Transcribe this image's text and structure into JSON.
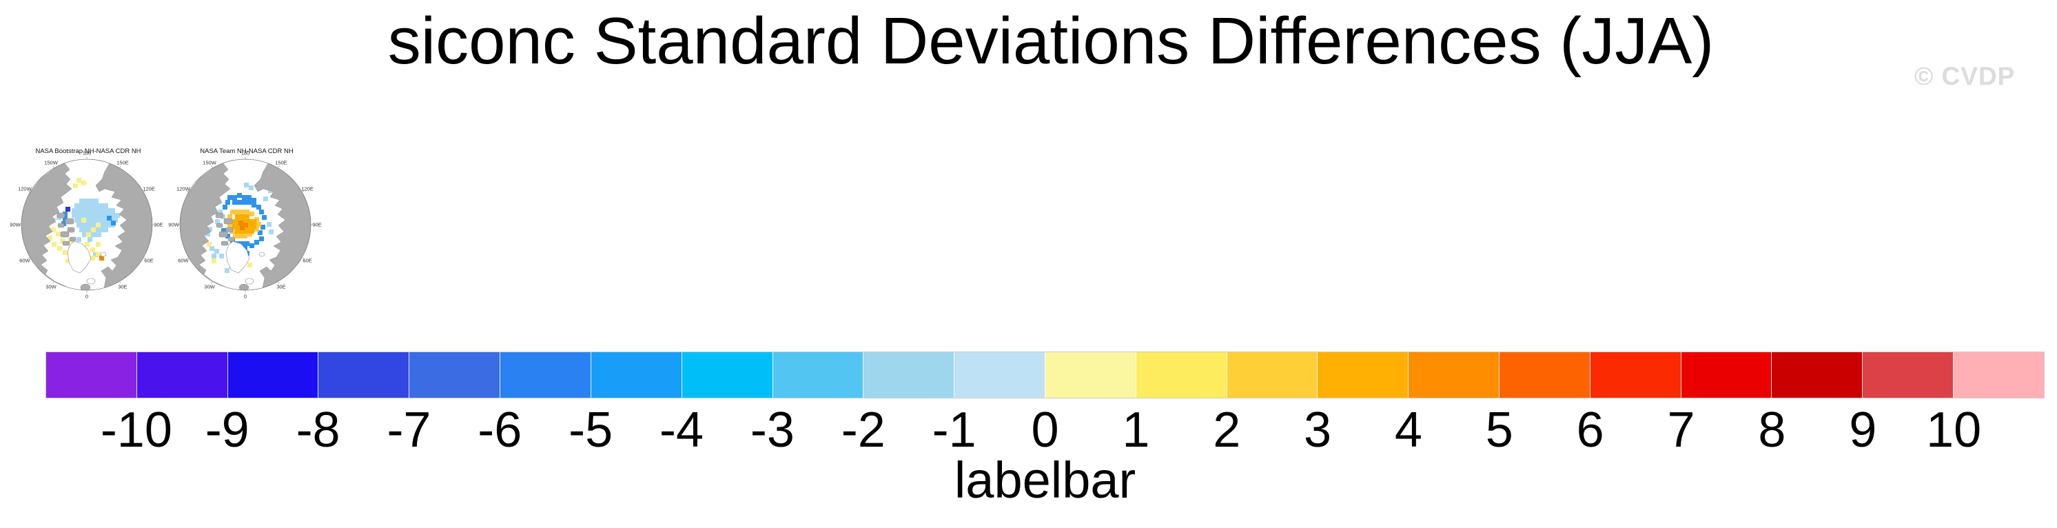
{
  "title": "siconc Standard Deviations Differences (JJA)",
  "watermark": "© CVDP",
  "maps": [
    {
      "title": "NASA Bootstrap NH-NASA CDR NH",
      "lon_labels": [
        "180",
        "150E",
        "120E",
        "90E",
        "60E",
        "30E",
        "0",
        "30W",
        "60W",
        "90W",
        "120W",
        "150W"
      ],
      "cells": [
        [
          104,
          85,
          "lb"
        ],
        [
          111,
          85,
          "lb"
        ],
        [
          118,
          85,
          "lb"
        ],
        [
          125,
          85,
          "lb"
        ],
        [
          97,
          92,
          "lb"
        ],
        [
          104,
          92,
          "lb"
        ],
        [
          111,
          92,
          "lb"
        ],
        [
          118,
          92,
          "lb"
        ],
        [
          125,
          92,
          "lb"
        ],
        [
          132,
          92,
          "lb"
        ],
        [
          139,
          92,
          "lb"
        ],
        [
          93,
          99,
          "lb"
        ],
        [
          100,
          99,
          "lb"
        ],
        [
          107,
          99,
          "lb"
        ],
        [
          114,
          99,
          "lb"
        ],
        [
          121,
          99,
          "lb"
        ],
        [
          128,
          99,
          "lb"
        ],
        [
          135,
          99,
          "lb"
        ],
        [
          142,
          99,
          "lb"
        ],
        [
          149,
          99,
          "lb"
        ],
        [
          93,
          106,
          "lb"
        ],
        [
          100,
          106,
          "lb"
        ],
        [
          107,
          106,
          "lb"
        ],
        [
          114,
          106,
          "lb"
        ],
        [
          121,
          106,
          "lb"
        ],
        [
          128,
          106,
          "lb"
        ],
        [
          135,
          106,
          "lb"
        ],
        [
          142,
          106,
          "lb"
        ],
        [
          149,
          106,
          "lb"
        ],
        [
          156,
          106,
          "lb"
        ],
        [
          97,
          113,
          "lb"
        ],
        [
          104,
          113,
          "lb"
        ],
        [
          111,
          113,
          "lb"
        ],
        [
          118,
          113,
          "lb"
        ],
        [
          125,
          113,
          "lb"
        ],
        [
          132,
          113,
          "lb"
        ],
        [
          139,
          113,
          "lb"
        ],
        [
          146,
          113,
          "lb"
        ],
        [
          153,
          113,
          "lb"
        ],
        [
          100,
          120,
          "lb"
        ],
        [
          107,
          120,
          "lb"
        ],
        [
          114,
          120,
          "lb"
        ],
        [
          121,
          120,
          "lb"
        ],
        [
          128,
          120,
          "lb"
        ],
        [
          135,
          120,
          "lb"
        ],
        [
          142,
          120,
          "lb"
        ],
        [
          149,
          120,
          "lb"
        ],
        [
          104,
          127,
          "lb"
        ],
        [
          111,
          127,
          "lb"
        ],
        [
          118,
          127,
          "lb"
        ],
        [
          125,
          127,
          "lb"
        ],
        [
          132,
          127,
          "lb"
        ],
        [
          139,
          127,
          "lb"
        ],
        [
          108,
          134,
          "lb"
        ],
        [
          115,
          134,
          "lb"
        ],
        [
          122,
          134,
          "lb"
        ],
        [
          129,
          134,
          "lb"
        ],
        [
          100,
          141,
          "lb"
        ],
        [
          116,
          141,
          "lb"
        ],
        [
          124,
          163,
          "lb"
        ],
        [
          63,
          113,
          "lb"
        ],
        [
          71,
          109,
          "lb"
        ],
        [
          107,
          113,
          "y"
        ],
        [
          121,
          127,
          "y"
        ],
        [
          114,
          134,
          "y"
        ],
        [
          128,
          120,
          "y"
        ],
        [
          100,
          55,
          "y"
        ],
        [
          107,
          59,
          "y"
        ],
        [
          95,
          63,
          "y"
        ],
        [
          55,
          121,
          "y"
        ],
        [
          63,
          127,
          "y"
        ],
        [
          48,
          131,
          "y"
        ],
        [
          70,
          133,
          "y"
        ],
        [
          58,
          139,
          "y"
        ],
        [
          76,
          143,
          "y"
        ],
        [
          64,
          148,
          "y"
        ],
        [
          72,
          154,
          "y"
        ],
        [
          80,
          160,
          "y"
        ],
        [
          88,
          154,
          "y"
        ],
        [
          96,
          162,
          "y"
        ],
        [
          104,
          168,
          "y"
        ],
        [
          112,
          162,
          "y"
        ],
        [
          120,
          156,
          "y"
        ],
        [
          128,
          148,
          "y"
        ],
        [
          96,
          148,
          "y"
        ],
        [
          88,
          142,
          "y"
        ],
        [
          104,
          154,
          "y"
        ],
        [
          112,
          148,
          "y"
        ],
        [
          84,
          172,
          "y"
        ],
        [
          96,
          176,
          "y"
        ],
        [
          120,
          168,
          "y"
        ],
        [
          128,
          162,
          "y"
        ],
        [
          80,
          104,
          "b"
        ],
        [
          80,
          111,
          "b"
        ],
        [
          78,
          118,
          "b"
        ],
        [
          150,
          117,
          "b"
        ],
        [
          144,
          110,
          "b"
        ],
        [
          84,
          97,
          "db"
        ],
        [
          101,
          152,
          "v"
        ],
        [
          150,
          66,
          "g"
        ],
        [
          133,
          168,
          "o"
        ]
      ]
    },
    {
      "title": "NASA Team NH-NASA CDR NH",
      "lon_labels": [
        "180",
        "150E",
        "120E",
        "90E",
        "60E",
        "30E",
        "0",
        "30W",
        "60W",
        "90W",
        "120W",
        "150W"
      ],
      "cells": [
        [
          89,
          80,
          "b"
        ],
        [
          96,
          80,
          "b"
        ],
        [
          103,
          77,
          "b"
        ],
        [
          110,
          80,
          "b"
        ],
        [
          117,
          80,
          "b"
        ],
        [
          124,
          84,
          "b"
        ],
        [
          96,
          87,
          "b"
        ],
        [
          103,
          87,
          "b"
        ],
        [
          110,
          87,
          "b"
        ],
        [
          117,
          87,
          "b"
        ],
        [
          124,
          91,
          "b"
        ],
        [
          131,
          94,
          "b"
        ],
        [
          86,
          87,
          "b"
        ],
        [
          82,
          94,
          "b"
        ],
        [
          135,
          101,
          "b"
        ],
        [
          139,
          109,
          "b"
        ],
        [
          137,
          123,
          "b"
        ],
        [
          133,
          131,
          "b"
        ],
        [
          135,
          140,
          "b"
        ],
        [
          128,
          145,
          "b"
        ],
        [
          121,
          150,
          "b"
        ],
        [
          114,
          147,
          "b"
        ],
        [
          107,
          147,
          "b"
        ],
        [
          100,
          147,
          "b"
        ],
        [
          93,
          143,
          "b"
        ],
        [
          86,
          136,
          "b"
        ],
        [
          80,
          128,
          "b"
        ],
        [
          104,
          154,
          "b"
        ],
        [
          111,
          154,
          "b"
        ],
        [
          107,
          161,
          "b"
        ],
        [
          100,
          161,
          "b"
        ],
        [
          114,
          161,
          "b"
        ],
        [
          104,
          168,
          "b"
        ],
        [
          111,
          168,
          "b"
        ],
        [
          107,
          175,
          "b"
        ],
        [
          100,
          175,
          "b"
        ],
        [
          97,
          182,
          "b"
        ],
        [
          93,
          154,
          "b"
        ],
        [
          148,
          70,
          "lb"
        ],
        [
          155,
          75,
          "lb"
        ],
        [
          162,
          80,
          "lb"
        ],
        [
          141,
          82,
          "lb"
        ],
        [
          113,
          62,
          "lb"
        ],
        [
          120,
          66,
          "lb"
        ],
        [
          75,
          101,
          "lb"
        ],
        [
          79,
          108,
          "lb"
        ],
        [
          71,
          115,
          "lb"
        ],
        [
          49,
          113,
          "lb"
        ],
        [
          56,
          117,
          "lb"
        ],
        [
          52,
          124,
          "lb"
        ],
        [
          60,
          126,
          "lb"
        ],
        [
          44,
          121,
          "lb"
        ],
        [
          57,
          133,
          "lb"
        ],
        [
          63,
          154,
          "lb"
        ],
        [
          70,
          158,
          "lb"
        ],
        [
          66,
          165,
          "lb"
        ],
        [
          77,
          165,
          "lb"
        ],
        [
          88,
          168,
          "lb"
        ],
        [
          92,
          180,
          "lb"
        ],
        [
          85,
          186,
          "lb"
        ],
        [
          146,
          119,
          "lb"
        ],
        [
          149,
          130,
          "lb"
        ],
        [
          93,
          101,
          "am"
        ],
        [
          100,
          101,
          "am"
        ],
        [
          107,
          101,
          "am"
        ],
        [
          114,
          101,
          "am"
        ],
        [
          121,
          104,
          "am"
        ],
        [
          89,
          108,
          "am"
        ],
        [
          128,
          112,
          "am"
        ],
        [
          89,
          115,
          "am"
        ],
        [
          131,
          119,
          "am"
        ],
        [
          89,
          122,
          "am"
        ],
        [
          93,
          129,
          "am"
        ],
        [
          128,
          126,
          "am"
        ],
        [
          97,
          136,
          "am"
        ],
        [
          104,
          136,
          "am"
        ],
        [
          111,
          136,
          "am"
        ],
        [
          118,
          133,
          "am"
        ],
        [
          100,
          108,
          "g"
        ],
        [
          107,
          108,
          "g"
        ],
        [
          114,
          108,
          "g"
        ],
        [
          96,
          115,
          "g"
        ],
        [
          103,
          115,
          "g"
        ],
        [
          110,
          115,
          "g"
        ],
        [
          117,
          115,
          "g"
        ],
        [
          124,
          115,
          "g"
        ],
        [
          96,
          122,
          "g"
        ],
        [
          103,
          122,
          "g"
        ],
        [
          110,
          122,
          "g"
        ],
        [
          117,
          122,
          "g"
        ],
        [
          124,
          122,
          "g"
        ],
        [
          100,
          129,
          "g"
        ],
        [
          107,
          129,
          "g"
        ],
        [
          114,
          129,
          "g"
        ],
        [
          121,
          129,
          "g"
        ],
        [
          105,
          117,
          "o"
        ],
        [
          112,
          120,
          "o"
        ],
        [
          107,
          124,
          "o"
        ],
        [
          118,
          178,
          "y"
        ],
        [
          66,
          172,
          "y"
        ],
        [
          59,
          148,
          "y"
        ]
      ]
    }
  ],
  "palette": {
    "lb": "#A9D9F2",
    "b": "#2E93EA",
    "db": "#2A3BD6",
    "v": "#5A14C8",
    "y": "#FAEF86",
    "am": "#FFC840",
    "g": "#F7AE00",
    "o": "#F08800"
  },
  "colorbar": {
    "label": "labelbar",
    "ticks": [
      "-10",
      "-9",
      "-8",
      "-7",
      "-6",
      "-5",
      "-4",
      "-3",
      "-2",
      "-1",
      "0",
      "1",
      "2",
      "3",
      "4",
      "5",
      "6",
      "7",
      "8",
      "9",
      "10"
    ],
    "segments": [
      "#8A22E4",
      "#4A12EC",
      "#1B0EF2",
      "#3247E2",
      "#3B6CE4",
      "#2A82F2",
      "#189EF8",
      "#00BFF8",
      "#52C5F2",
      "#9ED6EE",
      "#BEE1F5",
      "#FBF6A0",
      "#FDEC5E",
      "#FFCF38",
      "#FFB003",
      "#FE8E00",
      "#FD6400",
      "#FC2A00",
      "#EB0000",
      "#CA0000",
      "#DB4146",
      "#FFB0B4"
    ]
  },
  "map_style": {
    "land_fill": "#ACACAC",
    "coast_stroke": "#8A8A8A",
    "rim_stroke": "#777777"
  },
  "chart_data": {
    "type": "heatmap",
    "title": "siconc Standard Deviations Differences (JJA)",
    "variable": "siconc",
    "season": "JJA",
    "panels": [
      {
        "title": "NASA Bootstrap NH-NASA CDR NH",
        "projection_ring_labels": [
          "180",
          "150E",
          "120E",
          "90E",
          "60E",
          "30E",
          "0",
          "30W",
          "60W",
          "90W",
          "120W",
          "150W"
        ]
      },
      {
        "title": "NASA Team NH-NASA CDR NH",
        "projection_ring_labels": [
          "180",
          "150E",
          "120E",
          "90E",
          "60E",
          "30E",
          "0",
          "30W",
          "60W",
          "90W",
          "120W",
          "150W"
        ]
      }
    ],
    "colorbar": {
      "label": "labelbar",
      "tick_values": [
        -10,
        -9,
        -8,
        -7,
        -6,
        -5,
        -4,
        -3,
        -2,
        -1,
        0,
        1,
        2,
        3,
        4,
        5,
        6,
        7,
        8,
        9,
        10
      ],
      "segment_colors": [
        "#8A22E4",
        "#4A12EC",
        "#1B0EF2",
        "#3247E2",
        "#3B6CE4",
        "#2A82F2",
        "#189EF8",
        "#00BFF8",
        "#52C5F2",
        "#9ED6EE",
        "#BEE1F5",
        "#FBF6A0",
        "#FDEC5E",
        "#FFCF38",
        "#FFB003",
        "#FE8E00",
        "#FD6400",
        "#FC2A00",
        "#EB0000",
        "#CA0000",
        "#DB4146",
        "#FFB0B4"
      ],
      "legend_position": "bottom",
      "orientation": "horizontal"
    }
  }
}
